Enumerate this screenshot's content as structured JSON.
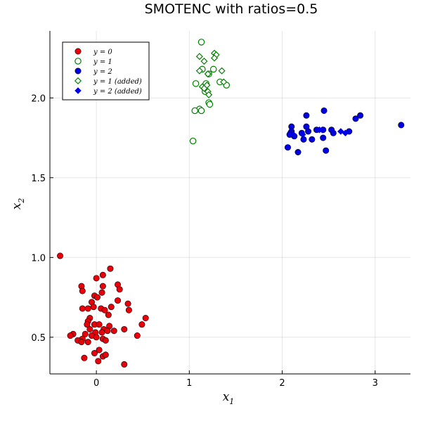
{
  "chart_data": {
    "type": "scatter",
    "title": "SMOTENC with ratios=0.5",
    "xlabel": "x",
    "xlabel_sub": "1",
    "ylabel": "x",
    "ylabel_sub": "2",
    "xlim": [
      -0.5,
      3.38
    ],
    "ylim": [
      0.27,
      2.42
    ],
    "xticks": [
      0,
      1,
      2,
      3
    ],
    "xtick_labels": [
      "0",
      "1",
      "2",
      "3"
    ],
    "yticks": [
      0.5,
      1.0,
      1.5,
      2.0
    ],
    "ytick_labels": [
      "0.5",
      "1.0",
      "1.5",
      "2.0"
    ],
    "grid": true,
    "legend_position": "top-left",
    "series": [
      {
        "name": "y = 0",
        "marker": "circle-filled",
        "color": "#e8000b",
        "points": [
          [
            -0.39,
            1.01
          ],
          [
            0.15,
            0.93
          ],
          [
            0.07,
            0.89
          ],
          [
            0.0,
            0.87
          ],
          [
            -0.16,
            0.82
          ],
          [
            0.07,
            0.82
          ],
          [
            0.23,
            0.83
          ],
          [
            0.25,
            0.8
          ],
          [
            -0.15,
            0.79
          ],
          [
            0.06,
            0.78
          ],
          [
            -0.02,
            0.76
          ],
          [
            0.01,
            0.75
          ],
          [
            0.23,
            0.73
          ],
          [
            -0.05,
            0.72
          ],
          [
            0.34,
            0.71
          ],
          [
            0.16,
            0.69
          ],
          [
            -0.03,
            0.69
          ],
          [
            -0.09,
            0.68
          ],
          [
            -0.15,
            0.68
          ],
          [
            0.05,
            0.68
          ],
          [
            0.09,
            0.67
          ],
          [
            0.35,
            0.67
          ],
          [
            0.13,
            0.64
          ],
          [
            0.53,
            0.62
          ],
          [
            -0.07,
            0.62
          ],
          [
            -0.09,
            0.6
          ],
          [
            -0.1,
            0.58
          ],
          [
            -0.02,
            0.58
          ],
          [
            0.03,
            0.58
          ],
          [
            0.49,
            0.58
          ],
          [
            0.14,
            0.57
          ],
          [
            -0.07,
            0.55
          ],
          [
            0.08,
            0.55
          ],
          [
            0.12,
            0.54
          ],
          [
            0.19,
            0.54
          ],
          [
            0.3,
            0.55
          ],
          [
            -0.01,
            0.53
          ],
          [
            0.06,
            0.53
          ],
          [
            -0.12,
            0.52
          ],
          [
            -0.25,
            0.52
          ],
          [
            -0.28,
            0.51
          ],
          [
            0.44,
            0.51
          ],
          [
            -0.05,
            0.51
          ],
          [
            0.0,
            0.5
          ],
          [
            -0.15,
            0.49
          ],
          [
            0.07,
            0.49
          ],
          [
            0.1,
            0.48
          ],
          [
            -0.2,
            0.48
          ],
          [
            -0.16,
            0.47
          ],
          [
            -0.09,
            0.47
          ],
          [
            0.03,
            0.42
          ],
          [
            -0.02,
            0.4
          ],
          [
            0.07,
            0.38
          ],
          [
            0.1,
            0.39
          ],
          [
            -0.13,
            0.37
          ],
          [
            0.02,
            0.35
          ],
          [
            0.3,
            0.33
          ]
        ]
      },
      {
        "name": "y = 1",
        "marker": "circle-open",
        "color": "#008000",
        "points": [
          [
            1.13,
            2.35
          ],
          [
            1.14,
            2.18
          ],
          [
            1.21,
            2.15
          ],
          [
            1.26,
            2.18
          ],
          [
            1.07,
            2.09
          ],
          [
            1.18,
            2.09
          ],
          [
            1.33,
            2.1
          ],
          [
            1.4,
            2.08
          ],
          [
            1.17,
            2.04
          ],
          [
            1.21,
            1.97
          ],
          [
            1.22,
            1.96
          ],
          [
            1.11,
            1.93
          ],
          [
            1.13,
            1.92
          ],
          [
            1.06,
            1.92
          ],
          [
            1.04,
            1.73
          ]
        ]
      },
      {
        "name": "y = 2",
        "marker": "circle-filled",
        "color": "#0000e6",
        "points": [
          [
            2.45,
            1.92
          ],
          [
            2.26,
            1.89
          ],
          [
            2.84,
            1.89
          ],
          [
            2.79,
            1.87
          ],
          [
            3.28,
            1.83
          ],
          [
            2.1,
            1.82
          ],
          [
            2.26,
            1.82
          ],
          [
            2.28,
            1.79
          ],
          [
            2.37,
            1.8
          ],
          [
            2.1,
            1.79
          ],
          [
            2.44,
            1.8
          ],
          [
            2.53,
            1.8
          ],
          [
            2.21,
            1.78
          ],
          [
            2.09,
            1.78
          ],
          [
            2.55,
            1.78
          ],
          [
            2.72,
            1.79
          ],
          [
            2.08,
            1.77
          ],
          [
            2.13,
            1.76
          ],
          [
            2.44,
            1.75
          ],
          [
            2.32,
            1.74
          ],
          [
            2.23,
            1.74
          ],
          [
            2.06,
            1.69
          ],
          [
            2.47,
            1.67
          ],
          [
            2.17,
            1.66
          ]
        ]
      },
      {
        "name": "y = 1 (added)",
        "marker": "diamond-open",
        "color": "#008000",
        "points": [
          [
            1.27,
            2.28
          ],
          [
            1.29,
            2.27
          ],
          [
            1.27,
            2.25
          ],
          [
            1.11,
            2.26
          ],
          [
            1.16,
            2.23
          ],
          [
            1.35,
            2.17
          ],
          [
            1.11,
            2.17
          ],
          [
            1.19,
            2.08
          ],
          [
            1.14,
            2.07
          ],
          [
            1.16,
            2.06
          ],
          [
            1.2,
            2.04
          ],
          [
            1.21,
            2.02
          ],
          [
            1.37,
            2.1
          ],
          [
            1.2,
            2.15
          ]
        ]
      },
      {
        "name": "y = 2 (added)",
        "marker": "diamond-filled",
        "color": "#0000e6",
        "points": [
          [
            2.4,
            1.8
          ],
          [
            2.63,
            1.79
          ],
          [
            2.68,
            1.78
          ],
          [
            2.43,
            1.8
          ],
          [
            2.12,
            1.77
          ],
          [
            2.22,
            1.77
          ]
        ]
      }
    ],
    "legend": [
      {
        "label": "y = 0",
        "marker": "circle-filled",
        "color": "#e8000b"
      },
      {
        "label": "y = 1",
        "marker": "circle-open",
        "color": "#008000"
      },
      {
        "label": "y = 2",
        "marker": "circle-filled",
        "color": "#0000e6"
      },
      {
        "label": "y = 1 (added)",
        "marker": "diamond-open",
        "color": "#008000"
      },
      {
        "label": "y = 2 (added)",
        "marker": "diamond-filled",
        "color": "#0000e6"
      }
    ]
  }
}
